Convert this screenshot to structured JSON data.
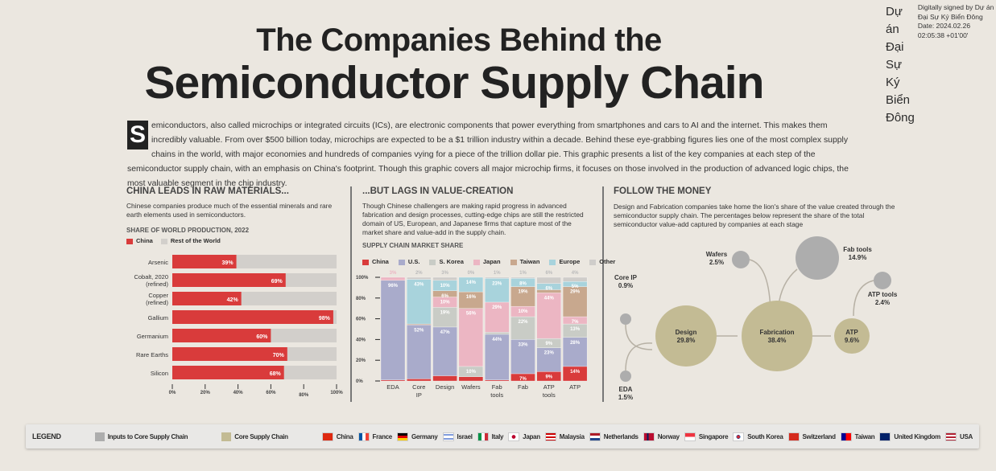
{
  "title": {
    "line1": "The Companies Behind the",
    "line2": "Semiconductor Supply Chain"
  },
  "signature": {
    "name": "Dự án Đại Sự Ký Biển Đông",
    "text": "Digitally signed by Dự án Đại Sự Ký Biển Đông Date: 2024.02.26 02:05:38 +01'00'"
  },
  "intro": {
    "dropcap": "S",
    "text": "emiconductors, also called microchips or integrated circuits (ICs), are electronic components that power everything from smartphones and cars to AI and the internet. This makes them incredibly valuable. From over $500 billion today, microchips are expected to be a $1 trillion industry within a decade. Behind these eye-grabbing figures lies one of the most complex supply chains in the world, with major economies and hundreds of companies vying for a piece of the trillion dollar pie. This graphic presents a list of the key companies at each step of the semiconductor supply chain, with an emphasis on China's footprint. Though this graphic covers all major microchip firms, it focuses on those involved in the production of advanced logic chips, the most valuable segment in the chip industry."
  },
  "raw": {
    "heading": "CHINA LEADS IN RAW MATERIALS...",
    "desc": "Chinese companies produce much of the essential minerals and rare earth elements used in semiconductors.",
    "subtitle": "SHARE OF WORLD PRODUCTION, 2022",
    "legend": [
      "China",
      "Rest of the World"
    ]
  },
  "value": {
    "heading": "...BUT LAGS IN VALUE-CREATION",
    "desc": "Though Chinese challengers are making rapid progress in advanced fabrication and design processes, cutting-edge chips are still the restricted domain of US, European, and Japanese firms that capture most of the market share and value-add in the supply chain.",
    "subtitle": "SUPPLY CHAIN MARKET SHARE"
  },
  "money": {
    "heading": "FOLLOW THE MONEY",
    "desc": "Design and Fabrication companies take home the lion's share of the value created through the semiconductor supply chain. The percentages below represent the share of the total semiconductor value-add captured by companies at each stage",
    "nodes": [
      {
        "name": "Core IP",
        "pct": "0.9%",
        "type": "input"
      },
      {
        "name": "EDA",
        "pct": "1.5%",
        "type": "input"
      },
      {
        "name": "Design",
        "pct": "29.8%",
        "type": "core"
      },
      {
        "name": "Fabrication",
        "pct": "38.4%",
        "type": "core"
      },
      {
        "name": "ATP",
        "pct": "9.6%",
        "type": "core"
      },
      {
        "name": "Wafers",
        "pct": "2.5%",
        "type": "input"
      },
      {
        "name": "Fab tools",
        "pct": "14.9%",
        "type": "input"
      },
      {
        "name": "ATP tools",
        "pct": "2.4%",
        "type": "input"
      }
    ]
  },
  "colors": {
    "china": "#d93b3b",
    "rest": "#d2cfcb",
    "us": "#a9abcb",
    "korea": "#c9ccc6",
    "japan": "#ecb6c3",
    "taiwan": "#c8a88e",
    "europe": "#a8d3dc",
    "other": "#cfcdca",
    "input": "#adadad",
    "core": "#c3bb94"
  },
  "chart_data": [
    {
      "type": "bar",
      "title": "SHARE OF WORLD PRODUCTION, 2022",
      "categories": [
        "Arsenic",
        "Cobalt, 2020 (refined)",
        "Copper (refined)",
        "Gallium",
        "Germanium",
        "Rare Earths",
        "Silicon"
      ],
      "series": [
        {
          "name": "China",
          "values": [
            39,
            69,
            42,
            98,
            60,
            70,
            68
          ]
        }
      ],
      "xlim": [
        0,
        100
      ],
      "xticks": [
        "0%",
        "20%",
        "40%",
        "60%",
        "80%",
        "100%"
      ]
    },
    {
      "type": "bar",
      "stacked": true,
      "title": "SUPPLY CHAIN MARKET SHARE",
      "categories": [
        "EDA",
        "Core IP",
        "Design",
        "Wafers",
        "Fab tools",
        "Fab",
        "ATP tools",
        "ATP"
      ],
      "series": [
        {
          "name": "China",
          "key": "china",
          "values": [
            1,
            2,
            5,
            4,
            1,
            7,
            9,
            14
          ]
        },
        {
          "name": "U.S.",
          "key": "us",
          "values": [
            96,
            52,
            47,
            0,
            44,
            33,
            23,
            28
          ]
        },
        {
          "name": "S. Korea",
          "key": "korea",
          "values": [
            0,
            0,
            19,
            10,
            2,
            22,
            9,
            13
          ]
        },
        {
          "name": "Japan",
          "key": "japan",
          "values": [
            3,
            0,
            10,
            56,
            29,
            10,
            44,
            7
          ]
        },
        {
          "name": "Taiwan",
          "key": "taiwan",
          "values": [
            0,
            1,
            6,
            16,
            0,
            19,
            3,
            29
          ]
        },
        {
          "name": "Europe",
          "key": "europe",
          "values": [
            0,
            43,
            10,
            14,
            23,
            8,
            6,
            5
          ]
        },
        {
          "name": "Other",
          "key": "other",
          "values": [
            0,
            2,
            3,
            0,
            1,
            1,
            6,
            4
          ]
        }
      ],
      "ylim": [
        0,
        100
      ],
      "yticks": [
        "0%",
        "20%",
        "40%",
        "60%",
        "80%",
        "100%"
      ]
    }
  ],
  "legend": {
    "title": "LEGEND",
    "inputs": "Inputs to Core Supply Chain",
    "core": "Core Supply Chain",
    "countries": [
      "China",
      "France",
      "Germany",
      "Israel",
      "Italy",
      "Japan",
      "Malaysia",
      "Netherlands",
      "Norway",
      "Singapore",
      "South Korea",
      "Switzerland",
      "Taiwan",
      "United Kingdom",
      "USA"
    ]
  }
}
